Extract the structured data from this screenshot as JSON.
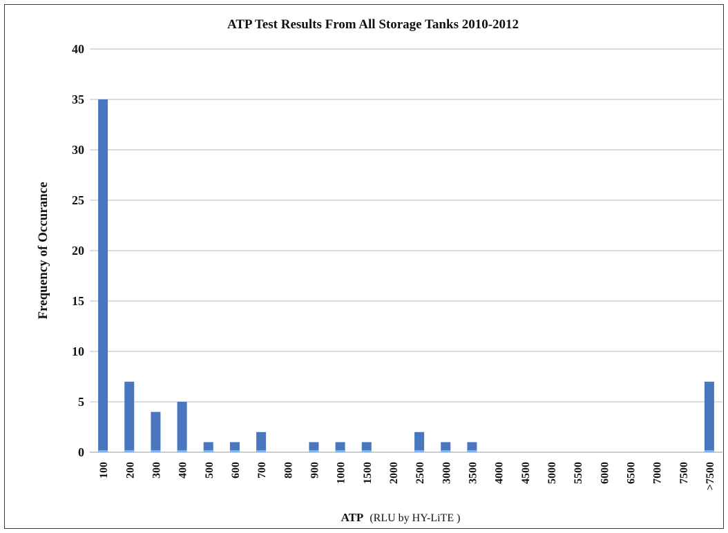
{
  "chart_data": {
    "type": "bar",
    "title": "ATP Test Results From All Storage Tanks 2010-2012",
    "ylabel": "Frequency of Occurance",
    "xlabel_prefix": "ATP",
    "xlabel_unit": "(RLU by HY-LiTE )",
    "ylim": [
      0,
      40
    ],
    "yticks": [
      0,
      5,
      10,
      15,
      20,
      25,
      30,
      35,
      40
    ],
    "grid": true,
    "legend": "none",
    "bar_color": "#4a76c0",
    "categories": [
      "100",
      "200",
      "300",
      "400",
      "500",
      "600",
      "700",
      "800",
      "900",
      "1000",
      "1500",
      "2000",
      "2500",
      "3000",
      "3500",
      "4000",
      "4500",
      "5000",
      "5500",
      "6000",
      "6500",
      "7000",
      "7500",
      ">7500"
    ],
    "values": [
      35,
      7,
      4,
      5,
      1,
      1,
      2,
      0,
      1,
      1,
      1,
      0,
      2,
      1,
      1,
      0,
      0,
      0,
      0,
      0,
      0,
      0,
      0,
      7
    ]
  }
}
